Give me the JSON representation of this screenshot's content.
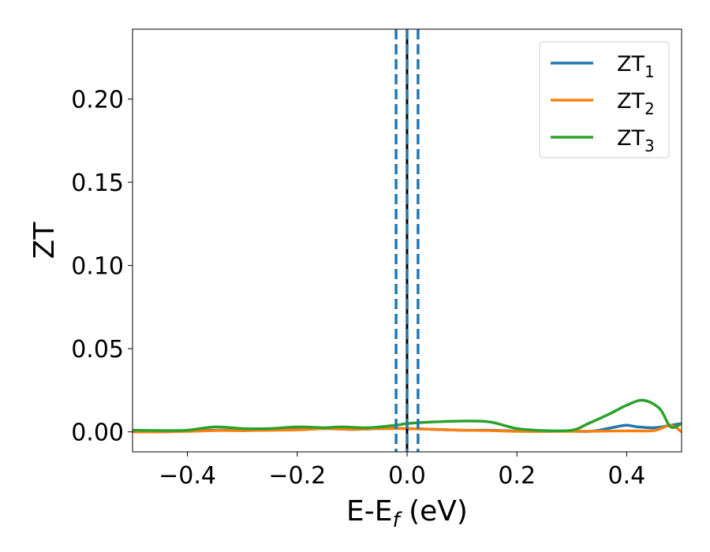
{
  "chart_data": {
    "type": "line",
    "xlabel": "E-E",
    "xlabel_sub": "f",
    "xlabel_unit": " (eV)",
    "ylabel": "ZT",
    "xlim": [
      -0.5,
      0.5
    ],
    "ylim": [
      -0.012,
      0.242
    ],
    "xticks": [
      -0.4,
      -0.2,
      0.0,
      0.2,
      0.4
    ],
    "xtick_labels": [
      "−0.4",
      "−0.2",
      "0.0",
      "0.2",
      "0.4"
    ],
    "yticks": [
      0.0,
      0.05,
      0.1,
      0.15,
      0.2
    ],
    "ytick_labels": [
      "0.00",
      "0.05",
      "0.10",
      "0.15",
      "0.20"
    ],
    "grid": false,
    "legend_position": "top-right",
    "series": [
      {
        "name": "ZT",
        "sub": "1",
        "color": "#1f77b4",
        "x": [
          -0.5,
          -0.45,
          -0.4,
          -0.35,
          -0.3,
          -0.25,
          -0.2,
          -0.15,
          -0.1,
          -0.05,
          0.0,
          0.05,
          0.1,
          0.15,
          0.2,
          0.25,
          0.28,
          0.3,
          0.33,
          0.35,
          0.38,
          0.4,
          0.42,
          0.45,
          0.48,
          0.5
        ],
        "y": [
          0.0,
          0.0,
          0.0005,
          0.001,
          0.0008,
          0.0012,
          0.0015,
          0.002,
          0.0015,
          0.002,
          0.002,
          0.0015,
          0.001,
          0.001,
          0.0005,
          0.0003,
          0.0005,
          0.0005,
          0.0003,
          0.001,
          0.003,
          0.004,
          0.003,
          0.0025,
          0.004,
          0.005
        ]
      },
      {
        "name": "ZT",
        "sub": "2",
        "color": "#ff7f0e",
        "x": [
          -0.5,
          -0.45,
          -0.4,
          -0.35,
          -0.3,
          -0.25,
          -0.2,
          -0.15,
          -0.1,
          -0.05,
          0.0,
          0.05,
          0.1,
          0.15,
          0.2,
          0.25,
          0.3,
          0.35,
          0.4,
          0.45,
          0.48,
          0.5
        ],
        "y": [
          0.0,
          0.0,
          0.0003,
          0.0008,
          0.0008,
          0.001,
          0.0012,
          0.002,
          0.0015,
          0.002,
          0.002,
          0.0015,
          0.001,
          0.0008,
          0.0003,
          0.0003,
          0.0003,
          0.0004,
          0.0006,
          0.0008,
          0.004,
          0.0
        ]
      },
      {
        "name": "ZT",
        "sub": "3",
        "color": "#2ca02c",
        "x": [
          -0.5,
          -0.45,
          -0.4,
          -0.35,
          -0.3,
          -0.25,
          -0.2,
          -0.15,
          -0.12,
          -0.07,
          -0.02,
          0.0,
          0.05,
          0.1,
          0.15,
          0.2,
          0.25,
          0.3,
          0.33,
          0.37,
          0.4,
          0.43,
          0.46,
          0.48,
          0.5
        ],
        "y": [
          0.001,
          0.0008,
          0.001,
          0.003,
          0.002,
          0.002,
          0.003,
          0.0025,
          0.003,
          0.0025,
          0.004,
          0.005,
          0.006,
          0.0065,
          0.006,
          0.002,
          0.0008,
          0.001,
          0.005,
          0.011,
          0.016,
          0.019,
          0.014,
          0.003,
          0.005
        ]
      }
    ],
    "vlines": [
      {
        "x": -0.02,
        "color": "#1f77b4",
        "style": "dashed"
      },
      {
        "x": 0.0,
        "color": "#000000",
        "style": "solid"
      },
      {
        "x": 0.0,
        "color": "#1f77b4",
        "style": "dashed"
      },
      {
        "x": 0.02,
        "color": "#1f77b4",
        "style": "dashed"
      }
    ]
  }
}
